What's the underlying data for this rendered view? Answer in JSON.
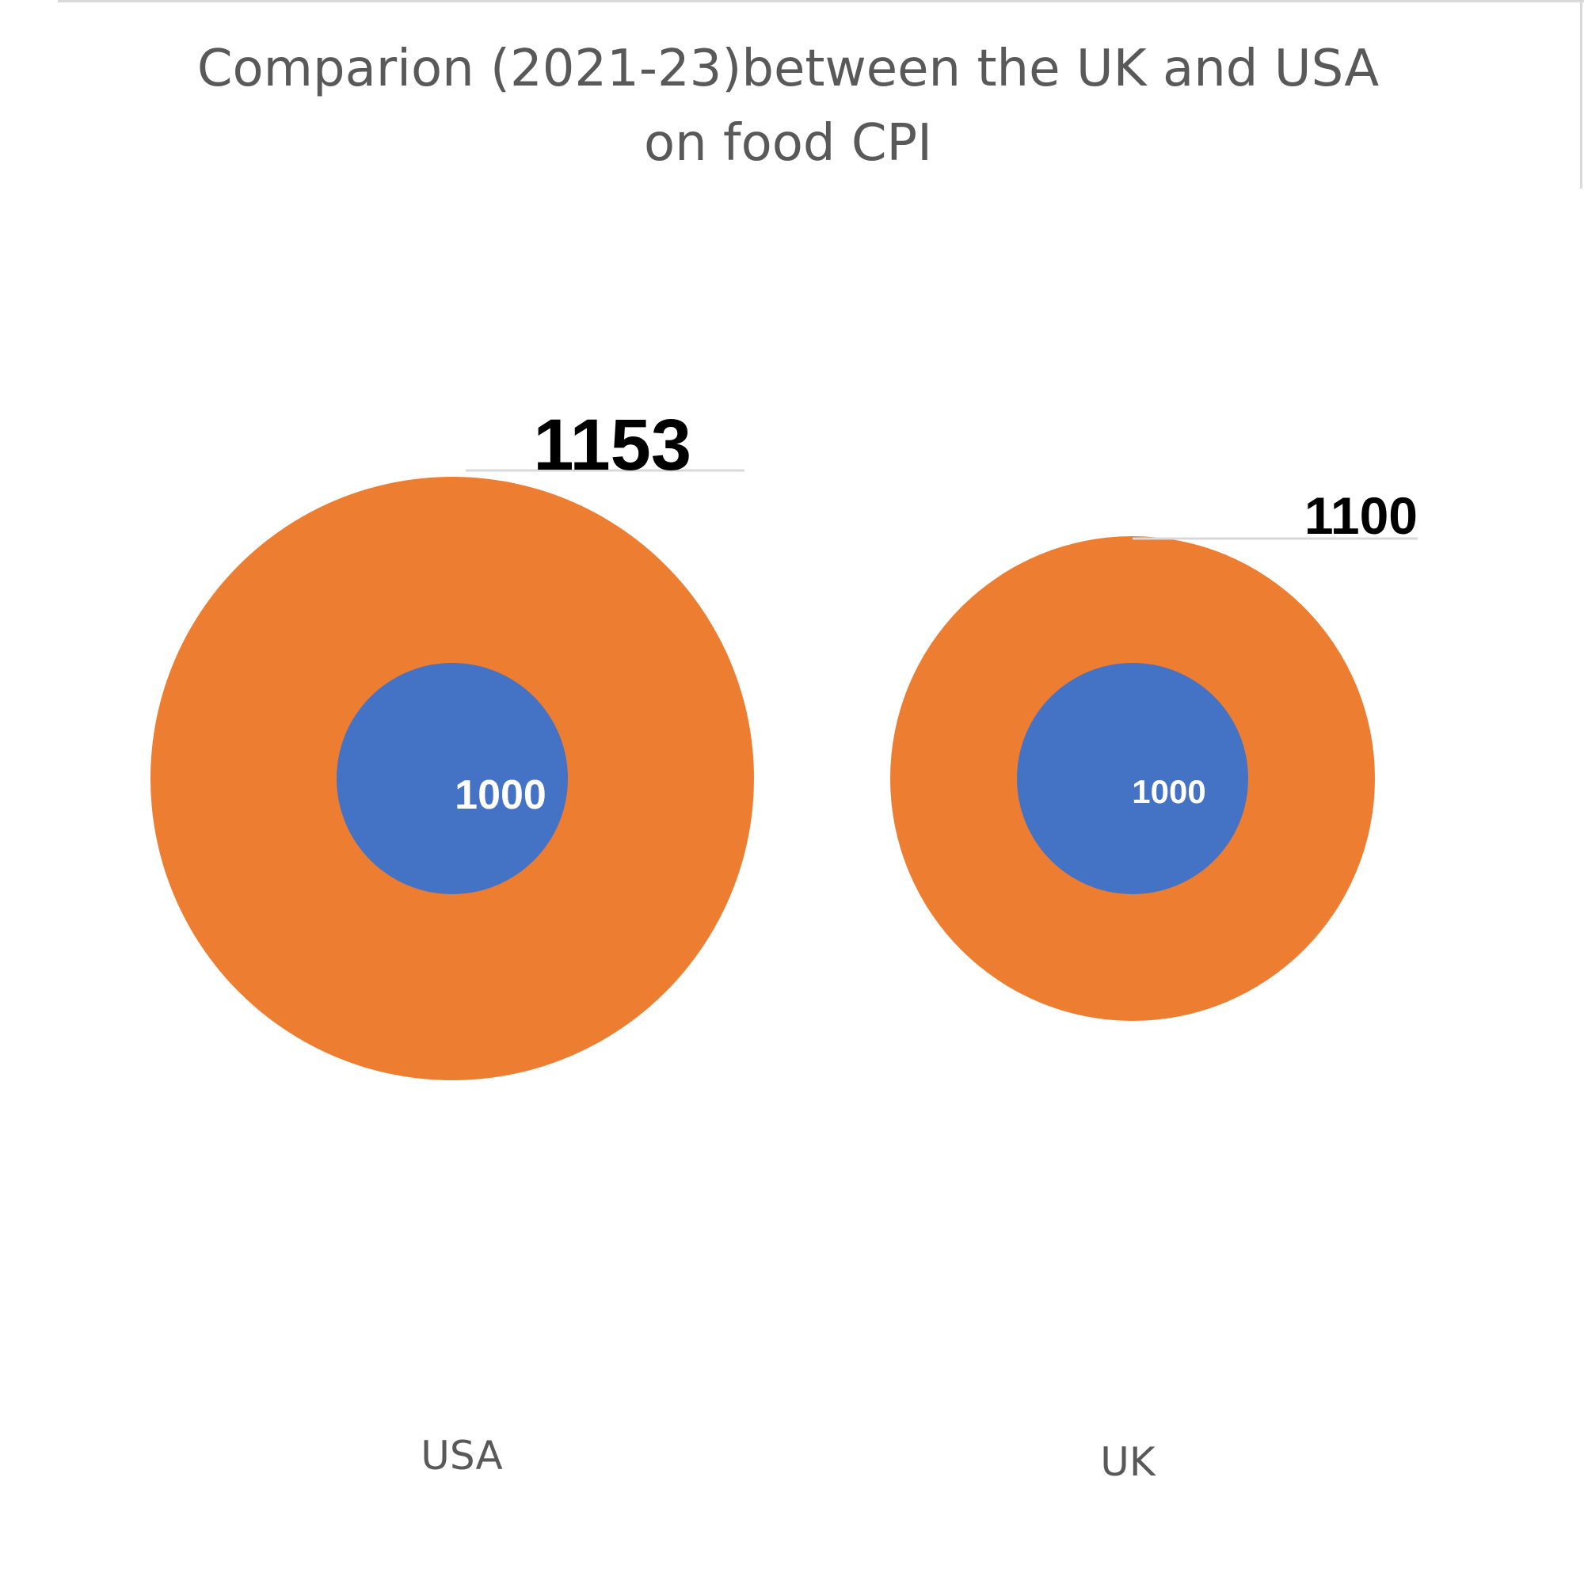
{
  "chart_data": {
    "type": "bubble",
    "title": "Comparion (2021-23)between the UK and USA\non food CPI",
    "categories": [
      "USA",
      "UK"
    ],
    "series": [
      {
        "values": [
          1000,
          1000
        ],
        "color": "#4472C4"
      },
      {
        "values": [
          1153,
          1100
        ],
        "color": "#ED7D31"
      }
    ],
    "labels": {
      "outer": [
        "1153",
        "1100"
      ],
      "inner": [
        "1000",
        "1000"
      ]
    },
    "legend": "none",
    "grid": false
  }
}
